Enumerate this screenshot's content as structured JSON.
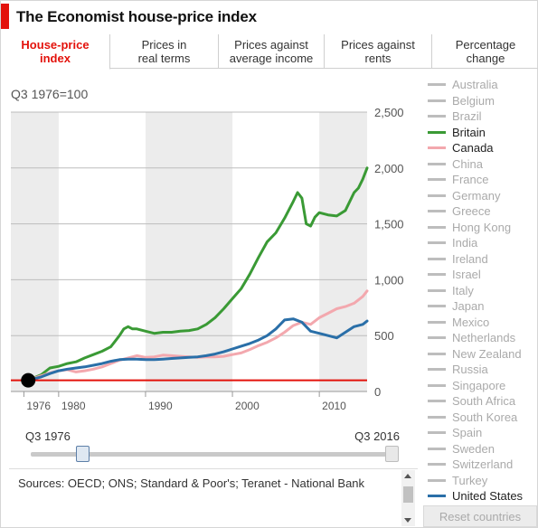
{
  "title": "The Economist house-price index",
  "tabs": [
    {
      "label": "House-price\nindex",
      "active": true
    },
    {
      "label": "Prices in\nreal terms",
      "active": false
    },
    {
      "label": "Prices against\naverage income",
      "active": false
    },
    {
      "label": "Prices against\nrents",
      "active": false
    },
    {
      "label": "Percentage\nchange",
      "active": false
    }
  ],
  "baseline_label": "Q3 1976=100",
  "countries": [
    {
      "name": "Australia",
      "on": false,
      "color": "#bdbdbd"
    },
    {
      "name": "Belgium",
      "on": false,
      "color": "#bdbdbd"
    },
    {
      "name": "Brazil",
      "on": false,
      "color": "#bdbdbd"
    },
    {
      "name": "Britain",
      "on": true,
      "color": "#3a9a35"
    },
    {
      "name": "Canada",
      "on": true,
      "color": "#f3a8ae"
    },
    {
      "name": "China",
      "on": false,
      "color": "#bdbdbd"
    },
    {
      "name": "France",
      "on": false,
      "color": "#bdbdbd"
    },
    {
      "name": "Germany",
      "on": false,
      "color": "#bdbdbd"
    },
    {
      "name": "Greece",
      "on": false,
      "color": "#bdbdbd"
    },
    {
      "name": "Hong Kong",
      "on": false,
      "color": "#bdbdbd"
    },
    {
      "name": "India",
      "on": false,
      "color": "#bdbdbd"
    },
    {
      "name": "Ireland",
      "on": false,
      "color": "#bdbdbd"
    },
    {
      "name": "Israel",
      "on": false,
      "color": "#bdbdbd"
    },
    {
      "name": "Italy",
      "on": false,
      "color": "#bdbdbd"
    },
    {
      "name": "Japan",
      "on": false,
      "color": "#bdbdbd"
    },
    {
      "name": "Mexico",
      "on": false,
      "color": "#bdbdbd"
    },
    {
      "name": "Netherlands",
      "on": false,
      "color": "#bdbdbd"
    },
    {
      "name": "New Zealand",
      "on": false,
      "color": "#bdbdbd"
    },
    {
      "name": "Russia",
      "on": false,
      "color": "#bdbdbd"
    },
    {
      "name": "Singapore",
      "on": false,
      "color": "#bdbdbd"
    },
    {
      "name": "South Africa",
      "on": false,
      "color": "#bdbdbd"
    },
    {
      "name": "South Korea",
      "on": false,
      "color": "#bdbdbd"
    },
    {
      "name": "Spain",
      "on": false,
      "color": "#bdbdbd"
    },
    {
      "name": "Sweden",
      "on": false,
      "color": "#bdbdbd"
    },
    {
      "name": "Switzerland",
      "on": false,
      "color": "#bdbdbd"
    },
    {
      "name": "Turkey",
      "on": false,
      "color": "#bdbdbd"
    },
    {
      "name": "United States",
      "on": true,
      "color": "#2a6fa8"
    }
  ],
  "reset_label": "Reset countries",
  "slider": {
    "start_label": "Q3 1976",
    "end_label": "Q3 2016",
    "start_value": 1976.5,
    "end_value": 2016.5
  },
  "sources": "Sources: OECD; ONS; Standard & Poor's; Teranet - National Bank",
  "chart_data": {
    "type": "line",
    "title": "",
    "xlabel": "",
    "ylabel": "",
    "xlim": [
      1974.5,
      2015.5
    ],
    "ylim": [
      0,
      2500
    ],
    "x_ticks": [
      1976,
      1980,
      1990,
      2000,
      2010
    ],
    "y_ticks": [
      0,
      500,
      1000,
      1500,
      2000,
      2500
    ],
    "y_tick_labels": [
      "0",
      "500",
      "1,000",
      "1,500",
      "2,000",
      "2,500"
    ],
    "shaded_decades": [
      [
        1974.5,
        1980
      ],
      [
        1990,
        2000
      ],
      [
        2010,
        2015.5
      ]
    ],
    "reference_line": {
      "y": 100,
      "color": "#e3120b"
    },
    "baseline_point": {
      "x": 1976.5,
      "y": 100
    },
    "colors": {
      "grid": "#bdbdbd",
      "shade": "#ececec",
      "axis_text": "#555"
    },
    "series": [
      {
        "name": "Britain",
        "color": "#3a9a35",
        "x": [
          1976.5,
          1978,
          1979,
          1980,
          1981,
          1982,
          1983,
          1984,
          1985,
          1986,
          1986.5,
          1987,
          1987.5,
          1988,
          1988.5,
          1989,
          1990,
          1991,
          1992,
          1993,
          1994,
          1995,
          1996,
          1997,
          1998,
          1999,
          2000,
          2001,
          2002,
          2003,
          2004,
          2005,
          2006,
          2007,
          2007.5,
          2008,
          2008.5,
          2009,
          2009.5,
          2010,
          2011,
          2012,
          2013,
          2014,
          2014.5,
          2015,
          2015.5
        ],
        "y": [
          100,
          150,
          210,
          225,
          250,
          265,
          300,
          330,
          360,
          400,
          450,
          500,
          560,
          580,
          560,
          560,
          540,
          520,
          530,
          530,
          540,
          545,
          560,
          600,
          660,
          740,
          830,
          920,
          1050,
          1200,
          1340,
          1420,
          1550,
          1700,
          1780,
          1730,
          1500,
          1480,
          1560,
          1600,
          1580,
          1570,
          1620,
          1780,
          1820,
          1900,
          2000
        ]
      },
      {
        "name": "Canada",
        "color": "#f3a8ae",
        "x": [
          1976.5,
          1978,
          1979,
          1980,
          1981,
          1982,
          1983,
          1984,
          1985,
          1986,
          1987,
          1988,
          1989,
          1990,
          1991,
          1992,
          1993,
          1994,
          1995,
          1996,
          1997,
          1998,
          1999,
          2000,
          2001,
          2002,
          2003,
          2004,
          2005,
          2006,
          2007,
          2008,
          2009,
          2010,
          2011,
          2012,
          2013,
          2014,
          2015,
          2015.5
        ],
        "y": [
          100,
          140,
          165,
          185,
          195,
          175,
          185,
          200,
          220,
          250,
          280,
          300,
          320,
          305,
          310,
          325,
          320,
          315,
          310,
          305,
          310,
          310,
          315,
          330,
          345,
          375,
          410,
          440,
          480,
          530,
          590,
          620,
          600,
          660,
          700,
          740,
          760,
          790,
          850,
          900
        ]
      },
      {
        "name": "United States",
        "color": "#2a6fa8",
        "x": [
          1976.5,
          1978,
          1979,
          1980,
          1981,
          1982,
          1983,
          1984,
          1985,
          1986,
          1987,
          1988,
          1989,
          1990,
          1991,
          1992,
          1993,
          1994,
          1995,
          1996,
          1997,
          1998,
          1999,
          2000,
          2001,
          2002,
          2003,
          2004,
          2005,
          2006,
          2007,
          2008,
          2009,
          2010,
          2011,
          2012,
          2013,
          2014,
          2015,
          2015.5
        ],
        "y": [
          100,
          130,
          160,
          185,
          200,
          210,
          220,
          235,
          250,
          270,
          285,
          290,
          290,
          285,
          285,
          290,
          295,
          300,
          305,
          310,
          320,
          335,
          355,
          380,
          405,
          430,
          460,
          500,
          560,
          640,
          650,
          620,
          540,
          520,
          500,
          480,
          530,
          580,
          600,
          630
        ]
      }
    ]
  }
}
